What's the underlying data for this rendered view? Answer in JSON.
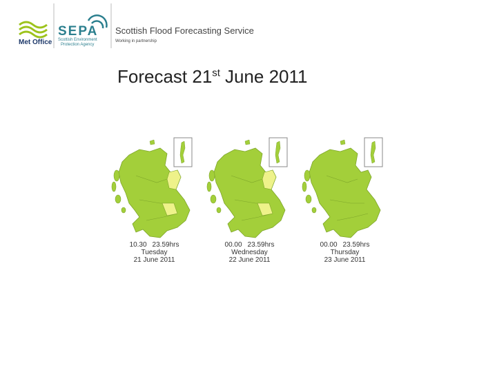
{
  "header": {
    "met_office": "Met Office",
    "sepa": "SEPA",
    "sepa_sub": [
      "Scottish Environment",
      "Protection Agency"
    ],
    "service": "Scottish Flood Forecasting Service",
    "tagline": "Working in partnership"
  },
  "title": {
    "prefix": "Forecast 21",
    "superscript": "st",
    "rest": "June 2011"
  },
  "maps": [
    {
      "time_start": "10.30",
      "time_end": "23.59hrs",
      "day": "Tuesday",
      "date": "21 June 2011"
    },
    {
      "time_start": "00.00",
      "time_end": "23.59hrs",
      "day": "Wednesday",
      "date": "22 June 2011"
    },
    {
      "time_start": "00.00",
      "time_end": "23.59hrs",
      "day": "Thursday",
      "date": "23 June 2011"
    }
  ]
}
